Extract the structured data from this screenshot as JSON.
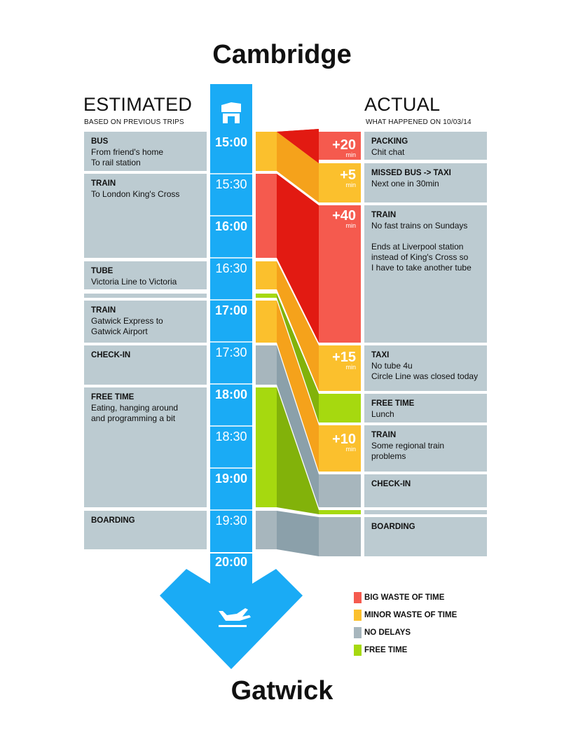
{
  "title_top": "Cambridge",
  "title_bottom": "Gatwick",
  "estimated": {
    "heading": "ESTIMATED",
    "subheading": "BASED ON PREVIOUS TRIPS",
    "items": [
      {
        "title": "BUS",
        "desc": "From friend's home\nTo rail station"
      },
      {
        "title": "TRAIN",
        "desc": "To London King's Cross"
      },
      {
        "title": "TUBE",
        "desc": "Victoria Line to Victoria"
      },
      {
        "title": "TRAIN",
        "desc": "Gatwick Express to\nGatwick Airport"
      },
      {
        "title": "CHECK-IN",
        "desc": ""
      },
      {
        "title": "FREE TIME",
        "desc": "Eating, hanging around\nand programming a bit"
      },
      {
        "title": "BOARDING",
        "desc": ""
      }
    ]
  },
  "actual": {
    "heading": "ACTUAL",
    "subheading": "WHAT HAPPENED ON 10/03/14",
    "items": [
      {
        "title": "PACKING",
        "desc": "Chit chat"
      },
      {
        "title": "MISSED BUS -> TAXI",
        "desc": "Next one in 30min"
      },
      {
        "title": "TRAIN",
        "desc": "No fast trains on Sundays\n\nEnds at Liverpool station\ninstead of King's Cross so\nI have to take another tube"
      },
      {
        "title": "TAXI",
        "desc": "No tube 4u\nCircle Line was closed today"
      },
      {
        "title": "FREE TIME",
        "desc": "Lunch"
      },
      {
        "title": "TRAIN",
        "desc": "Some regional train problems"
      },
      {
        "title": "CHECK-IN",
        "desc": ""
      },
      {
        "title": "BOARDING",
        "desc": ""
      }
    ]
  },
  "timeline": {
    "times": [
      "15:00",
      "15:30",
      "16:00",
      "16:30",
      "17:00",
      "17:30",
      "18:00",
      "18:30",
      "19:00",
      "19:30",
      "20:00"
    ],
    "icon_top": "house-icon",
    "icon_bottom": "airplane-icon"
  },
  "delays": [
    {
      "value": "+20",
      "unit": "min"
    },
    {
      "value": "+5",
      "unit": "min"
    },
    {
      "value": "+40",
      "unit": "min"
    },
    {
      "value": "+15",
      "unit": "min"
    },
    {
      "value": "+10",
      "unit": "min"
    }
  ],
  "legend": [
    {
      "label": "BIG WASTE OF TIME",
      "color": "#f55a4e"
    },
    {
      "label": "MINOR WASTE OF TIME",
      "color": "#fbc02d"
    },
    {
      "label": "NO DELAYS",
      "color": "#a7b6bd"
    },
    {
      "label": "FREE TIME",
      "color": "#a6d90f"
    }
  ],
  "colors": {
    "timeline_blue": "#1aabf5",
    "box_grey": "#bccbd1",
    "red": "#f55a4e",
    "red_dark": "#e21a12",
    "orange": "#fbc02d",
    "orange_dark": "#f5a21b",
    "green": "#a6d90f",
    "green_dark": "#82b20a",
    "grey": "#a7b6bd",
    "grey_dark": "#8ba0aa"
  }
}
